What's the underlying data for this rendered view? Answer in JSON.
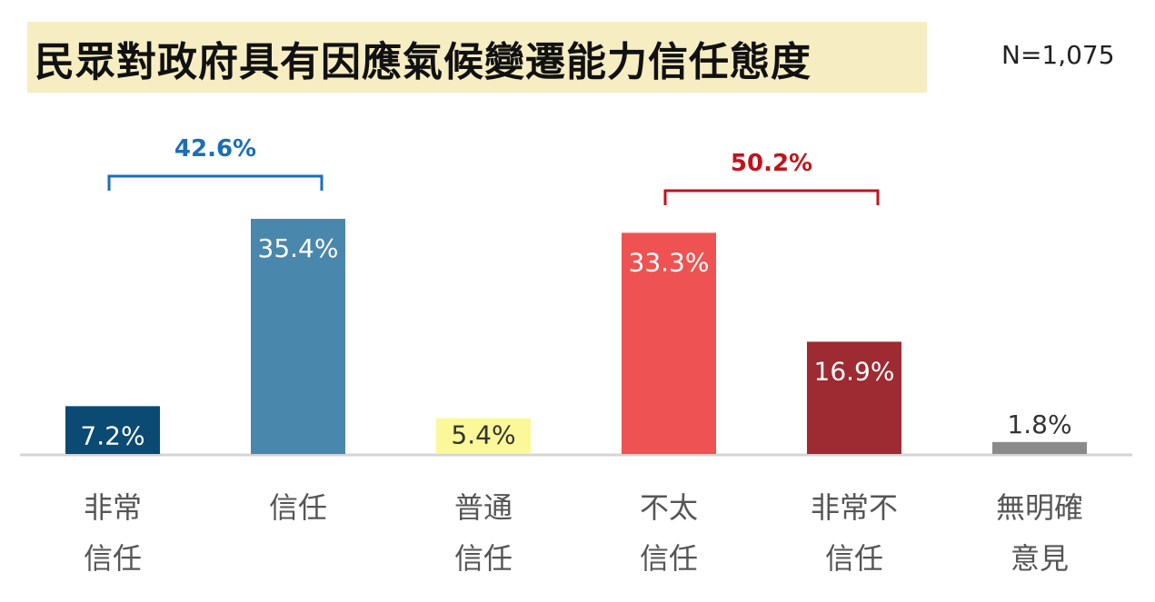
{
  "title": "民眾對政府具有因應氣候變遷能力信任態度",
  "sample_size": "N=1,075",
  "chart_data": {
    "type": "bar",
    "categories": [
      "非常\n信任",
      "信任",
      "普通\n信任",
      "不太\n信任",
      "非常不\n信任",
      "無明確\n意見"
    ],
    "values": [
      7.2,
      35.4,
      5.4,
      33.3,
      16.9,
      1.8
    ],
    "value_labels": [
      "7.2%",
      "35.4%",
      "5.4%",
      "33.3%",
      "16.9%",
      "1.8%"
    ],
    "colors": [
      "#0b4a72",
      "#4a87ac",
      "#fbf89a",
      "#ef5252",
      "#9e2a32",
      "#8a8a8a"
    ],
    "label_colors": [
      "#ffffff",
      "#ffffff",
      "#333333",
      "#ffffff",
      "#ffffff",
      "#333333"
    ],
    "ylim": [
      0,
      35.4
    ],
    "grid": false,
    "brackets": [
      {
        "label": "42.6%",
        "from": 0,
        "to": 1,
        "color": "#1a6fb5"
      },
      {
        "label": "50.2%",
        "from": 3,
        "to": 4,
        "color": "#c0141c"
      }
    ]
  }
}
